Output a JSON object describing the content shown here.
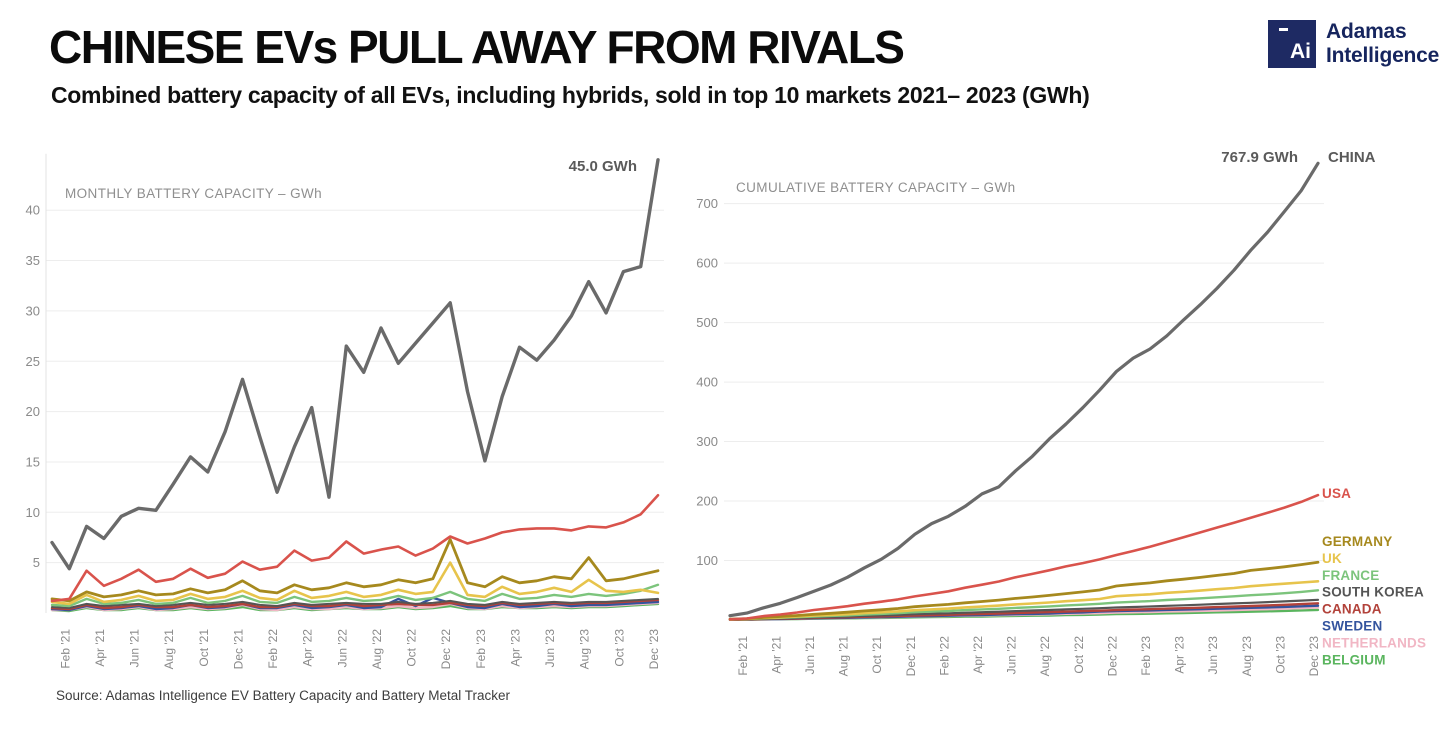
{
  "header": {
    "title": "CHINESE EVs PULL AWAY FROM RIVALS",
    "subtitle": "Combined battery capacity of all EVs, including hybrids, sold in top 10 markets 2021– 2023 (GWh)",
    "logo": {
      "icon_text": "Ai",
      "name_line1": "Adamas",
      "name_line2": "Intelligence",
      "brand_color": "#1e2a63"
    }
  },
  "footer": {
    "source": "Source: Adamas Intelligence EV Battery Capacity and Battery Metal Tracker"
  },
  "colors": {
    "grid": "#ededed",
    "axis_line": "#e3e3e3",
    "tick_text": "#8a8a8a",
    "axis_title": "#8f8f8f",
    "annotation": "#5a5a5a"
  },
  "chart_data": [
    {
      "type": "line",
      "id": "monthly",
      "title": "MONTHLY BATTERY CAPACITY – GWh",
      "x": [
        "Jan '21",
        "Feb '21",
        "Mar '21",
        "Apr '21",
        "May '21",
        "Jun '21",
        "Jul '21",
        "Aug '21",
        "Sep '21",
        "Oct '21",
        "Nov '21",
        "Dec '21",
        "Jan '22",
        "Feb '22",
        "Mar '22",
        "Apr '22",
        "May '22",
        "Jun '22",
        "Jul '22",
        "Aug '22",
        "Sep '22",
        "Oct '22",
        "Nov '22",
        "Dec '22",
        "Jan '23",
        "Feb '23",
        "Mar '23",
        "Apr '23",
        "May '23",
        "Jun '23",
        "Jul '23",
        "Aug '23",
        "Sep '23",
        "Oct '23",
        "Nov '23",
        "Dec '23"
      ],
      "x_ticks_shown": [
        "Feb '21",
        "Apr '21",
        "Jun '21",
        "Aug '21",
        "Oct '21",
        "Dec '21",
        "Feb '22",
        "Apr '22",
        "Jun '22",
        "Aug '22",
        "Oct '22",
        "Dec '22",
        "Feb '23",
        "Apr '23",
        "Jun '23",
        "Aug '23",
        "Oct '23",
        "Dec '23"
      ],
      "ylim": [
        0,
        46
      ],
      "yticks": [
        5,
        10,
        15,
        20,
        25,
        30,
        35,
        40
      ],
      "grid": true,
      "annotation": {
        "text": "45.0 GWh"
      },
      "series": [
        {
          "name": "CHINA",
          "color": "#6a6a6a",
          "width": 3.4,
          "values": [
            7.0,
            4.4,
            8.6,
            7.4,
            9.6,
            10.4,
            10.2,
            12.8,
            15.5,
            14.0,
            18.0,
            23.2,
            17.5,
            12.0,
            16.5,
            20.4,
            11.5,
            26.5,
            23.9,
            28.3,
            24.8,
            26.8,
            28.8,
            30.8,
            22.0,
            15.1,
            21.5,
            26.4,
            25.1,
            27.1,
            29.5,
            32.9,
            29.8,
            33.9,
            34.4,
            45.0
          ]
        },
        {
          "name": "USA",
          "color": "#d9534c",
          "width": 2.6,
          "values": [
            1.2,
            1.4,
            4.2,
            2.7,
            3.4,
            4.3,
            3.1,
            3.4,
            4.4,
            3.5,
            3.9,
            5.1,
            4.3,
            4.6,
            6.2,
            5.2,
            5.5,
            7.1,
            5.9,
            6.3,
            6.6,
            5.7,
            6.4,
            7.6,
            6.9,
            7.4,
            8.0,
            8.3,
            8.4,
            8.4,
            8.2,
            8.6,
            8.5,
            9.0,
            9.8,
            11.7
          ]
        },
        {
          "name": "GERMANY",
          "color": "#a6891e",
          "width": 2.8,
          "values": [
            1.4,
            1.2,
            2.1,
            1.6,
            1.8,
            2.2,
            1.8,
            1.9,
            2.4,
            2.0,
            2.3,
            3.2,
            2.2,
            2.0,
            2.8,
            2.3,
            2.5,
            3.0,
            2.6,
            2.8,
            3.3,
            3.0,
            3.4,
            7.3,
            3.0,
            2.6,
            3.6,
            3.0,
            3.2,
            3.6,
            3.4,
            5.5,
            3.2,
            3.4,
            3.8,
            4.2
          ]
        },
        {
          "name": "UK",
          "color": "#e7c44c",
          "width": 2.6,
          "values": [
            1.1,
            0.9,
            1.8,
            1.1,
            1.3,
            1.7,
            1.2,
            1.3,
            1.9,
            1.4,
            1.6,
            2.2,
            1.5,
            1.3,
            2.2,
            1.5,
            1.7,
            2.1,
            1.6,
            1.8,
            2.3,
            1.9,
            2.1,
            5.0,
            1.8,
            1.6,
            2.6,
            1.9,
            2.1,
            2.5,
            2.1,
            3.3,
            2.2,
            2.1,
            2.3,
            2.0
          ]
        },
        {
          "name": "FRANCE",
          "color": "#7cc47c",
          "width": 2.4,
          "values": [
            0.8,
            0.7,
            1.4,
            0.9,
            1.0,
            1.3,
            0.9,
            1.0,
            1.5,
            1.0,
            1.2,
            1.7,
            1.1,
            1.0,
            1.6,
            1.1,
            1.2,
            1.5,
            1.2,
            1.3,
            1.7,
            1.3,
            1.5,
            2.1,
            1.4,
            1.2,
            1.9,
            1.4,
            1.5,
            1.8,
            1.6,
            1.9,
            1.7,
            1.9,
            2.2,
            2.8
          ]
        },
        {
          "name": "SOUTH KOREA",
          "color": "#555555",
          "width": 2.0,
          "values": [
            0.6,
            0.5,
            0.9,
            0.7,
            0.8,
            0.9,
            0.7,
            0.8,
            1.0,
            0.8,
            0.9,
            1.1,
            0.8,
            0.7,
            1.0,
            0.8,
            0.9,
            1.0,
            0.9,
            0.9,
            1.1,
            0.9,
            1.0,
            1.2,
            0.9,
            0.8,
            1.1,
            0.9,
            1.0,
            1.1,
            1.0,
            1.1,
            1.1,
            1.2,
            1.3,
            1.4
          ]
        },
        {
          "name": "CANADA",
          "color": "#b2423a",
          "width": 2.4,
          "values": [
            0.5,
            0.4,
            0.8,
            0.5,
            0.6,
            0.8,
            0.6,
            0.6,
            0.8,
            0.6,
            0.7,
            0.9,
            0.6,
            0.6,
            0.9,
            0.7,
            0.7,
            0.9,
            0.7,
            0.8,
            0.9,
            0.8,
            0.8,
            1.0,
            0.8,
            0.7,
            1.0,
            0.8,
            0.9,
            1.0,
            0.9,
            1.0,
            1.0,
            1.1,
            1.2,
            1.3
          ]
        },
        {
          "name": "SWEDEN",
          "color": "#34549e",
          "width": 2.4,
          "values": [
            0.4,
            0.3,
            0.7,
            0.4,
            0.5,
            0.7,
            0.4,
            0.5,
            0.8,
            0.5,
            0.6,
            0.9,
            0.5,
            0.5,
            0.8,
            0.5,
            0.6,
            0.8,
            0.5,
            0.6,
            1.4,
            0.7,
            1.5,
            1.0,
            0.6,
            0.5,
            0.9,
            0.6,
            0.7,
            0.9,
            0.7,
            0.8,
            0.8,
            0.9,
            1.0,
            1.1
          ]
        },
        {
          "name": "NETHERLANDS",
          "color": "#f1b6c4",
          "width": 2.4,
          "values": [
            0.3,
            0.3,
            0.6,
            0.3,
            0.4,
            0.6,
            0.3,
            0.4,
            0.6,
            0.4,
            0.5,
            0.8,
            0.4,
            0.3,
            0.6,
            0.4,
            0.4,
            0.6,
            0.4,
            0.5,
            0.7,
            0.5,
            0.6,
            0.9,
            0.5,
            0.4,
            0.7,
            0.5,
            0.6,
            0.7,
            0.6,
            0.7,
            0.7,
            0.8,
            0.9,
            1.0
          ]
        },
        {
          "name": "BELGIUM",
          "color": "#5ab55e",
          "width": 2.4,
          "values": [
            0.3,
            0.2,
            0.5,
            0.3,
            0.3,
            0.5,
            0.3,
            0.3,
            0.5,
            0.3,
            0.4,
            0.6,
            0.3,
            0.3,
            0.5,
            0.3,
            0.4,
            0.5,
            0.4,
            0.4,
            0.6,
            0.4,
            0.5,
            0.7,
            0.4,
            0.4,
            0.6,
            0.5,
            0.5,
            0.6,
            0.5,
            0.6,
            0.6,
            0.7,
            0.8,
            0.9
          ]
        }
      ]
    },
    {
      "type": "line",
      "id": "cumulative",
      "title": "CUMULATIVE BATTERY CAPACITY – GWh",
      "note": "values are running cumulative sums of the monthly series, scaled to the final totals below",
      "x_ticks_shown": [
        "Feb '21",
        "Apr '21",
        "Jun '21",
        "Aug '21",
        "Oct '21",
        "Dec '21",
        "Feb '22",
        "Apr '22",
        "Jun '22",
        "Aug '22",
        "Oct '22",
        "Dec '22",
        "Feb '23",
        "Apr '23",
        "Jun '23",
        "Aug '23",
        "Oct '23",
        "Dec '23"
      ],
      "ylim": [
        0,
        790
      ],
      "yticks": [
        100,
        200,
        300,
        400,
        500,
        600,
        700
      ],
      "grid": true,
      "annotation": {
        "text": "767.9 GWh",
        "label": "CHINA"
      },
      "series": [
        {
          "name": "CHINA",
          "color": "#6a6a6a",
          "width": 3.2,
          "final": 767.9
        },
        {
          "name": "USA",
          "color": "#d9534c",
          "width": 2.6,
          "final": 210
        },
        {
          "name": "GERMANY",
          "color": "#a6891e",
          "width": 2.8,
          "final": 97
        },
        {
          "name": "UK",
          "color": "#e7c44c",
          "width": 2.6,
          "final": 65
        },
        {
          "name": "FRANCE",
          "color": "#7cc47c",
          "width": 2.4,
          "final": 50
        },
        {
          "name": "SOUTH KOREA",
          "color": "#555555",
          "width": 2.2,
          "final": 34
        },
        {
          "name": "CANADA",
          "color": "#b2423a",
          "width": 2.4,
          "final": 28
        },
        {
          "name": "SWEDEN",
          "color": "#34549e",
          "width": 2.4,
          "final": 24
        },
        {
          "name": "NETHERLANDS",
          "color": "#f1b6c4",
          "width": 2.4,
          "final": 21
        },
        {
          "name": "BELGIUM",
          "color": "#5ab55e",
          "width": 2.4,
          "final": 17
        }
      ],
      "legend_order": [
        "USA",
        "GERMANY",
        "UK",
        "FRANCE",
        "SOUTH KOREA",
        "CANADA",
        "SWEDEN",
        "NETHERLANDS",
        "BELGIUM"
      ]
    }
  ]
}
